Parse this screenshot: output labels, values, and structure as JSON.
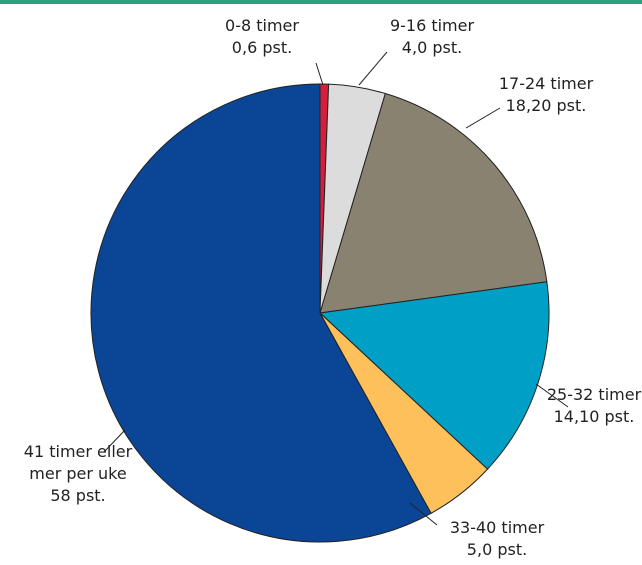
{
  "chart_data": {
    "type": "pie",
    "categories": [
      "0-8 timer",
      "9-16 timer",
      "17-24 timer",
      "25-32 timer",
      "33-40 timer",
      "41 timer eller mer per uke"
    ],
    "values": [
      0.6,
      4.0,
      18.2,
      14.1,
      5.0,
      58
    ],
    "value_labels": [
      "0,6 pst.",
      "4,0 pst.",
      "18,20 pst.",
      "14,10 pst.",
      "5,0 pst.",
      "58 pst."
    ],
    "label_lines": [
      [
        "0-8 timer",
        "0,6 pst."
      ],
      [
        "9-16 timer",
        "4,0 pst."
      ],
      [
        "17-24 timer",
        "18,20 pst."
      ],
      [
        "25-32 timer",
        "14,10 pst."
      ],
      [
        "33-40 timer",
        "5,0 pst."
      ],
      [
        "41 timer eller",
        "mer per uke",
        "58 pst."
      ]
    ],
    "colors": [
      "#d21f3c",
      "#dcdcdc",
      "#8a8271",
      "#00a0c6",
      "#fdc05a",
      "#0b4596"
    ],
    "start_angle_deg": 0,
    "direction": "clockwise"
  },
  "style": {
    "top_rule_color": "#2aa37e"
  }
}
